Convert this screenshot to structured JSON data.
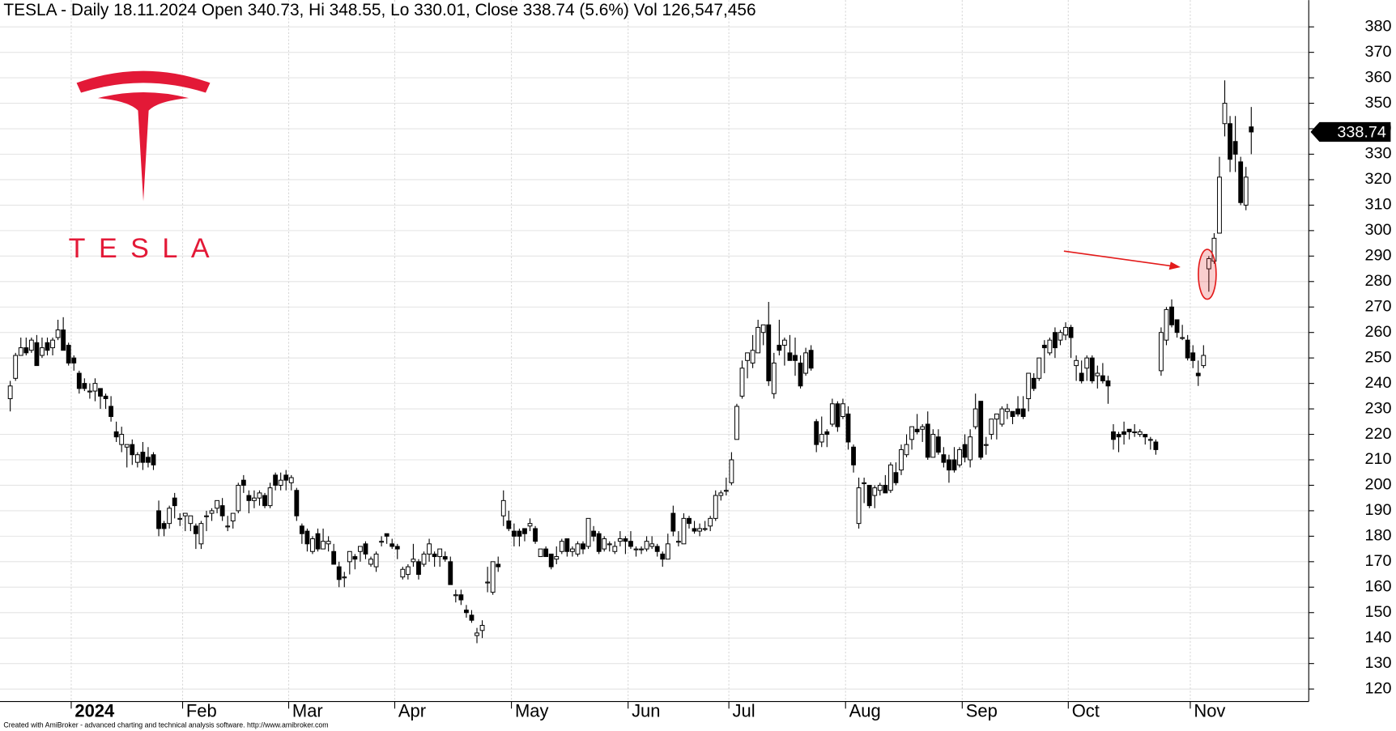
{
  "chart_data": {
    "type": "candlestick",
    "title": "TESLA - Daily 18.11.2024 Open 340.73, Hi 348.55, Lo 330.01, Close 338.74 (5.6%) Vol 126,547,456",
    "logo_text": "TESLA",
    "footer": "Created with AmiBroker - advanced charting and technical analysis software. http://www.amibroker.com",
    "up_color": "#ffffff",
    "down_color": "#000000",
    "grid": true,
    "ylim": [
      115.1,
      390.5
    ],
    "yticks": [
      120,
      130,
      140,
      150,
      160,
      170,
      180,
      190,
      200,
      210,
      220,
      230,
      240,
      250,
      260,
      270,
      280,
      290,
      300,
      310,
      320,
      330,
      340,
      350,
      360,
      370,
      380
    ],
    "categories": [
      null,
      null,
      null,
      null,
      null,
      null,
      null,
      null,
      null,
      null,
      null,
      null,
      "2024",
      null,
      null,
      null,
      null,
      null,
      null,
      null,
      null,
      null,
      null,
      null,
      null,
      null,
      null,
      null,
      null,
      null,
      null,
      null,
      null,
      "Feb",
      null,
      null,
      null,
      null,
      null,
      null,
      null,
      null,
      null,
      null,
      null,
      null,
      null,
      null,
      null,
      null,
      null,
      null,
      null,
      "Mar",
      null,
      null,
      null,
      null,
      null,
      null,
      null,
      null,
      null,
      null,
      null,
      null,
      null,
      null,
      null,
      null,
      null,
      null,
      null,
      "Apr",
      null,
      null,
      null,
      null,
      null,
      null,
      null,
      null,
      null,
      null,
      null,
      null,
      null,
      null,
      null,
      null,
      null,
      null,
      null,
      null,
      null,
      "May",
      null,
      null,
      null,
      null,
      null,
      null,
      null,
      null,
      null,
      null,
      null,
      null,
      null,
      null,
      null,
      null,
      null,
      null,
      null,
      null,
      null,
      "Jun",
      null,
      null,
      null,
      null,
      null,
      null,
      null,
      null,
      null,
      null,
      null,
      null,
      null,
      null,
      null,
      null,
      null,
      null,
      "Jul",
      null,
      null,
      null,
      null,
      null,
      null,
      null,
      null,
      null,
      null,
      null,
      null,
      null,
      null,
      null,
      null,
      null,
      null,
      null,
      null,
      null,
      "Aug",
      null,
      null,
      null,
      null,
      null,
      null,
      null,
      null,
      null,
      null,
      null,
      null,
      null,
      null,
      null,
      null,
      null,
      null,
      null,
      null,
      null,
      "Sep",
      null,
      null,
      null,
      null,
      null,
      null,
      null,
      null,
      null,
      null,
      null,
      null,
      null,
      null,
      null,
      null,
      null,
      null,
      null,
      "Oct",
      null,
      null,
      null,
      null,
      null,
      null,
      null,
      null,
      null,
      null,
      null,
      null,
      null,
      null,
      null,
      null,
      null,
      null,
      null,
      null,
      null,
      null,
      "Nov",
      null,
      null,
      null,
      null,
      null,
      null,
      null,
      null,
      null,
      null,
      null
    ],
    "open": [
      234,
      242,
      251,
      254,
      253,
      256,
      251,
      256,
      254,
      258,
      261,
      255,
      250,
      244,
      240,
      237,
      237,
      238,
      235,
      231,
      221,
      216,
      215,
      216,
      209,
      213,
      211,
      212,
      190,
      185,
      185,
      195,
      187,
      188,
      185,
      184,
      177,
      188,
      189,
      191,
      192,
      184,
      186,
      190,
      202,
      196,
      194,
      195,
      196,
      192,
      204,
      200,
      204,
      201,
      198,
      184,
      182,
      174,
      181,
      175,
      177,
      174,
      168,
      164,
      170,
      172,
      174,
      177,
      169,
      168,
      178,
      181,
      177,
      176,
      164,
      165,
      170,
      170,
      169,
      173,
      173,
      172,
      172,
      170,
      157,
      157,
      151,
      149,
      141,
      143,
      162,
      158,
      169,
      188,
      186,
      182,
      182,
      183,
      184,
      183,
      172,
      175,
      173,
      171,
      174,
      179,
      174,
      173,
      177,
      176,
      182,
      181,
      175,
      177,
      174,
      178,
      179,
      178,
      175,
      175,
      175,
      176,
      176,
      173,
      171,
      189,
      178,
      177,
      187,
      183,
      182,
      183,
      184,
      187,
      196,
      198,
      201,
      218,
      235,
      249,
      248,
      252,
      260,
      263,
      236,
      255,
      255,
      252,
      251,
      248,
      244,
      253,
      225,
      217,
      221,
      224,
      232,
      227,
      228,
      215,
      185,
      201,
      200,
      196,
      198,
      200,
      198,
      205,
      206,
      212,
      218,
      222,
      222,
      224,
      211,
      219,
      212,
      210,
      210,
      208,
      216,
      210,
      223,
      233,
      216,
      220,
      226,
      224,
      229,
      229,
      230,
      230,
      234,
      242,
      242,
      255,
      252,
      260,
      257,
      259,
      262,
      247,
      244,
      246,
      250,
      243,
      243,
      241,
      221,
      220,
      221,
      222,
      221,
      220,
      220,
      218,
      217,
      245,
      257,
      270,
      265,
      258,
      257,
      252,
      244,
      247,
      285,
      288,
      299,
      342,
      342,
      335,
      327,
      310,
      340.73
    ],
    "high": [
      241,
      252,
      258,
      258,
      258,
      259,
      258,
      258,
      258,
      265,
      266,
      256,
      251,
      245,
      242,
      240,
      242,
      238,
      236,
      235,
      225,
      223,
      216,
      218,
      213,
      217,
      215,
      213,
      194,
      186,
      192,
      197,
      189,
      189,
      188,
      185,
      186,
      190,
      191,
      194,
      195,
      188,
      189,
      201,
      204,
      198,
      198,
      198,
      197,
      201,
      205,
      205,
      206,
      204,
      199,
      185,
      183,
      180,
      183,
      183,
      180,
      177,
      170,
      166,
      174,
      173,
      176,
      178,
      172,
      174,
      180,
      181,
      179,
      177,
      168,
      169,
      177,
      171,
      174,
      179,
      174,
      175,
      174,
      172,
      159,
      159,
      153,
      151,
      144,
      147,
      168,
      170,
      172,
      198,
      190,
      185,
      183,
      183,
      187,
      184,
      175,
      176,
      173,
      176,
      179,
      179,
      176,
      178,
      178,
      187,
      184,
      182,
      180,
      178,
      178,
      182,
      180,
      182,
      176,
      176,
      180,
      180,
      177,
      174,
      181,
      192,
      182,
      189,
      188,
      186,
      185,
      186,
      188,
      198,
      198,
      203,
      213,
      232,
      249,
      252,
      259,
      265,
      263,
      272,
      252,
      265,
      258,
      259,
      258,
      251,
      254,
      255,
      226,
      227,
      222,
      234,
      233,
      234,
      231,
      216,
      203,
      203,
      200,
      200,
      201,
      204,
      209,
      209,
      216,
      220,
      223,
      228,
      224,
      229,
      222,
      222,
      215,
      212,
      215,
      215,
      220,
      222,
      236,
      233,
      219,
      226,
      228,
      231,
      232,
      229,
      235,
      235,
      244,
      244,
      250,
      257,
      258,
      262,
      261,
      264,
      263,
      251,
      249,
      251,
      251,
      247,
      248,
      243,
      224,
      221,
      225,
      222,
      224,
      222,
      220,
      219,
      218,
      262,
      270,
      273,
      265,
      263,
      259,
      255,
      249,
      255,
      290,
      299,
      329,
      359,
      345,
      345,
      329,
      325,
      348.55
    ],
    "low": [
      229,
      241,
      251,
      251,
      252,
      247,
      250,
      251,
      251,
      257,
      253,
      247,
      245,
      236,
      237,
      234,
      233,
      230,
      230,
      225,
      217,
      213,
      207,
      208,
      207,
      206,
      207,
      206,
      180,
      180,
      183,
      187,
      184,
      182,
      182,
      175,
      175,
      182,
      186,
      189,
      186,
      182,
      183,
      189,
      197,
      189,
      191,
      192,
      191,
      191,
      198,
      198,
      198,
      198,
      186,
      177,
      174,
      173,
      174,
      175,
      174,
      169,
      160,
      160,
      165,
      167,
      170,
      171,
      168,
      166,
      176,
      177,
      175,
      171,
      163,
      163,
      168,
      163,
      168,
      170,
      168,
      168,
      170,
      161,
      154,
      153,
      148,
      146,
      138,
      140,
      158,
      157,
      166,
      184,
      182,
      176,
      176,
      178,
      182,
      177,
      172,
      172,
      167,
      169,
      173,
      172,
      172,
      172,
      173,
      175,
      178,
      173,
      174,
      174,
      173,
      176,
      173,
      175,
      172,
      173,
      174,
      175,
      172,
      168,
      171,
      180,
      176,
      177,
      183,
      181,
      180,
      182,
      182,
      186,
      194,
      196,
      200,
      218,
      234,
      242,
      246,
      252,
      255,
      239,
      234,
      251,
      247,
      249,
      243,
      238,
      243,
      245,
      213,
      215,
      215,
      223,
      221,
      226,
      214,
      205,
      183,
      193,
      191,
      191,
      196,
      197,
      197,
      200,
      204,
      211,
      214,
      220,
      217,
      210,
      211,
      212,
      207,
      201,
      205,
      207,
      209,
      207,
      222,
      210,
      212,
      218,
      218,
      223,
      226,
      224,
      227,
      226,
      229,
      237,
      241,
      244,
      251,
      250,
      255,
      257,
      250,
      241,
      240,
      241,
      240,
      238,
      240,
      232,
      214,
      213,
      216,
      218,
      219,
      219,
      216,
      214,
      212,
      243,
      255,
      262,
      258,
      257,
      249,
      246,
      239,
      246,
      276,
      287,
      299,
      337,
      323,
      323,
      310,
      308,
      330.01
    ],
    "close": [
      239,
      251,
      254,
      252,
      257,
      247,
      254,
      253,
      257,
      261,
      253,
      248,
      248,
      238,
      238,
      237,
      240,
      235,
      234,
      227,
      219,
      220,
      216,
      212,
      212,
      209,
      209,
      208,
      183,
      183,
      191,
      192,
      187,
      189,
      188,
      181,
      185,
      188,
      190,
      194,
      188,
      184,
      189,
      200,
      200,
      194,
      195,
      197,
      192,
      199,
      200,
      202,
      202,
      203,
      188,
      181,
      177,
      179,
      175,
      178,
      178,
      169,
      163,
      164,
      174,
      171,
      176,
      173,
      171,
      173,
      178,
      180,
      176,
      175,
      167,
      168,
      171,
      165,
      173,
      177,
      172,
      175,
      171,
      161,
      157,
      155,
      150,
      147,
      142,
      145,
      162,
      170,
      168,
      194,
      183,
      180,
      180,
      181,
      185,
      178,
      175,
      172,
      168,
      172,
      178,
      174,
      175,
      177,
      175,
      187,
      180,
      174,
      179,
      177,
      176,
      179,
      178,
      176,
      175,
      175,
      178,
      177,
      174,
      171,
      177,
      182,
      178,
      187,
      185,
      182,
      183,
      183,
      187,
      196,
      197,
      198,
      210,
      231,
      246,
      252,
      253,
      262,
      263,
      241,
      248,
      253,
      257,
      249,
      249,
      239,
      252,
      246,
      216,
      220,
      220,
      232,
      223,
      232,
      217,
      208,
      199,
      201,
      192,
      199,
      200,
      197,
      208,
      201,
      214,
      216,
      223,
      221,
      223,
      211,
      220,
      213,
      209,
      206,
      206,
      214,
      211,
      219,
      230,
      211,
      216,
      226,
      228,
      230,
      230,
      227,
      228,
      227,
      244,
      238,
      250,
      254,
      257,
      254,
      260,
      262,
      258,
      249,
      241,
      250,
      241,
      244,
      241,
      239,
      218,
      219,
      220,
      221,
      221,
      221,
      219,
      218,
      214,
      260,
      269,
      263,
      260,
      258,
      250,
      249,
      243,
      251,
      289,
      297,
      321,
      350,
      328,
      330,
      311,
      321,
      338.74
    ]
  }
}
